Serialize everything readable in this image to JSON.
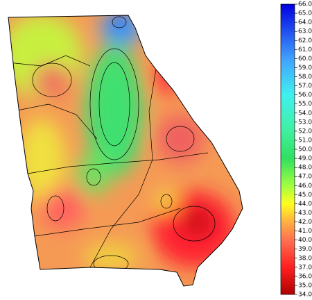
{
  "colorbar": {
    "range": [
      34,
      66
    ],
    "ticks": [
      {
        "value": 66,
        "label": "66.0"
      },
      {
        "value": 65,
        "label": "65.0"
      },
      {
        "value": 64,
        "label": "64.0"
      },
      {
        "value": 63,
        "label": "63.0"
      },
      {
        "value": 62,
        "label": "62.0"
      },
      {
        "value": 61,
        "label": "61.0"
      },
      {
        "value": 60,
        "label": "60.0"
      },
      {
        "value": 59,
        "label": "59.0"
      },
      {
        "value": 58,
        "label": "58.0"
      },
      {
        "value": 57,
        "label": "57.0"
      },
      {
        "value": 56,
        "label": "56.0"
      },
      {
        "value": 55,
        "label": "55.0"
      },
      {
        "value": 54,
        "label": "54.0"
      },
      {
        "value": 53,
        "label": "53.0"
      },
      {
        "value": 52,
        "label": "52.0"
      },
      {
        "value": 51,
        "label": "51.0"
      },
      {
        "value": 50,
        "label": "50.0"
      },
      {
        "value": 49,
        "label": "49.0"
      },
      {
        "value": 48,
        "label": "48.0"
      },
      {
        "value": 47,
        "label": "47.0"
      },
      {
        "value": 46,
        "label": "46.0"
      },
      {
        "value": 45,
        "label": "45.0"
      },
      {
        "value": 44,
        "label": "44.0"
      },
      {
        "value": 43,
        "label": "43.0"
      },
      {
        "value": 42,
        "label": "42.0"
      },
      {
        "value": 41,
        "label": "41.0"
      },
      {
        "value": 40,
        "label": "40.0"
      },
      {
        "value": 39,
        "label": "39.0"
      },
      {
        "value": 38,
        "label": "38.0"
      },
      {
        "value": 37,
        "label": "37.0"
      },
      {
        "value": 36,
        "label": "36.0"
      },
      {
        "value": 35,
        "label": "35.0"
      },
      {
        "value": 34,
        "label": "34.0"
      }
    ],
    "colormap": [
      {
        "value": 34,
        "color": "#b00000"
      },
      {
        "value": 37,
        "color": "#ff2020"
      },
      {
        "value": 40,
        "color": "#ff7050"
      },
      {
        "value": 42,
        "color": "#ffb040"
      },
      {
        "value": 44,
        "color": "#ffff20"
      },
      {
        "value": 46,
        "color": "#a0ff40"
      },
      {
        "value": 49,
        "color": "#30e060"
      },
      {
        "value": 52,
        "color": "#40f0a0"
      },
      {
        "value": 56,
        "color": "#40f0f0"
      },
      {
        "value": 60,
        "color": "#40a0ff"
      },
      {
        "value": 66,
        "color": "#0000e0"
      }
    ]
  }
}
